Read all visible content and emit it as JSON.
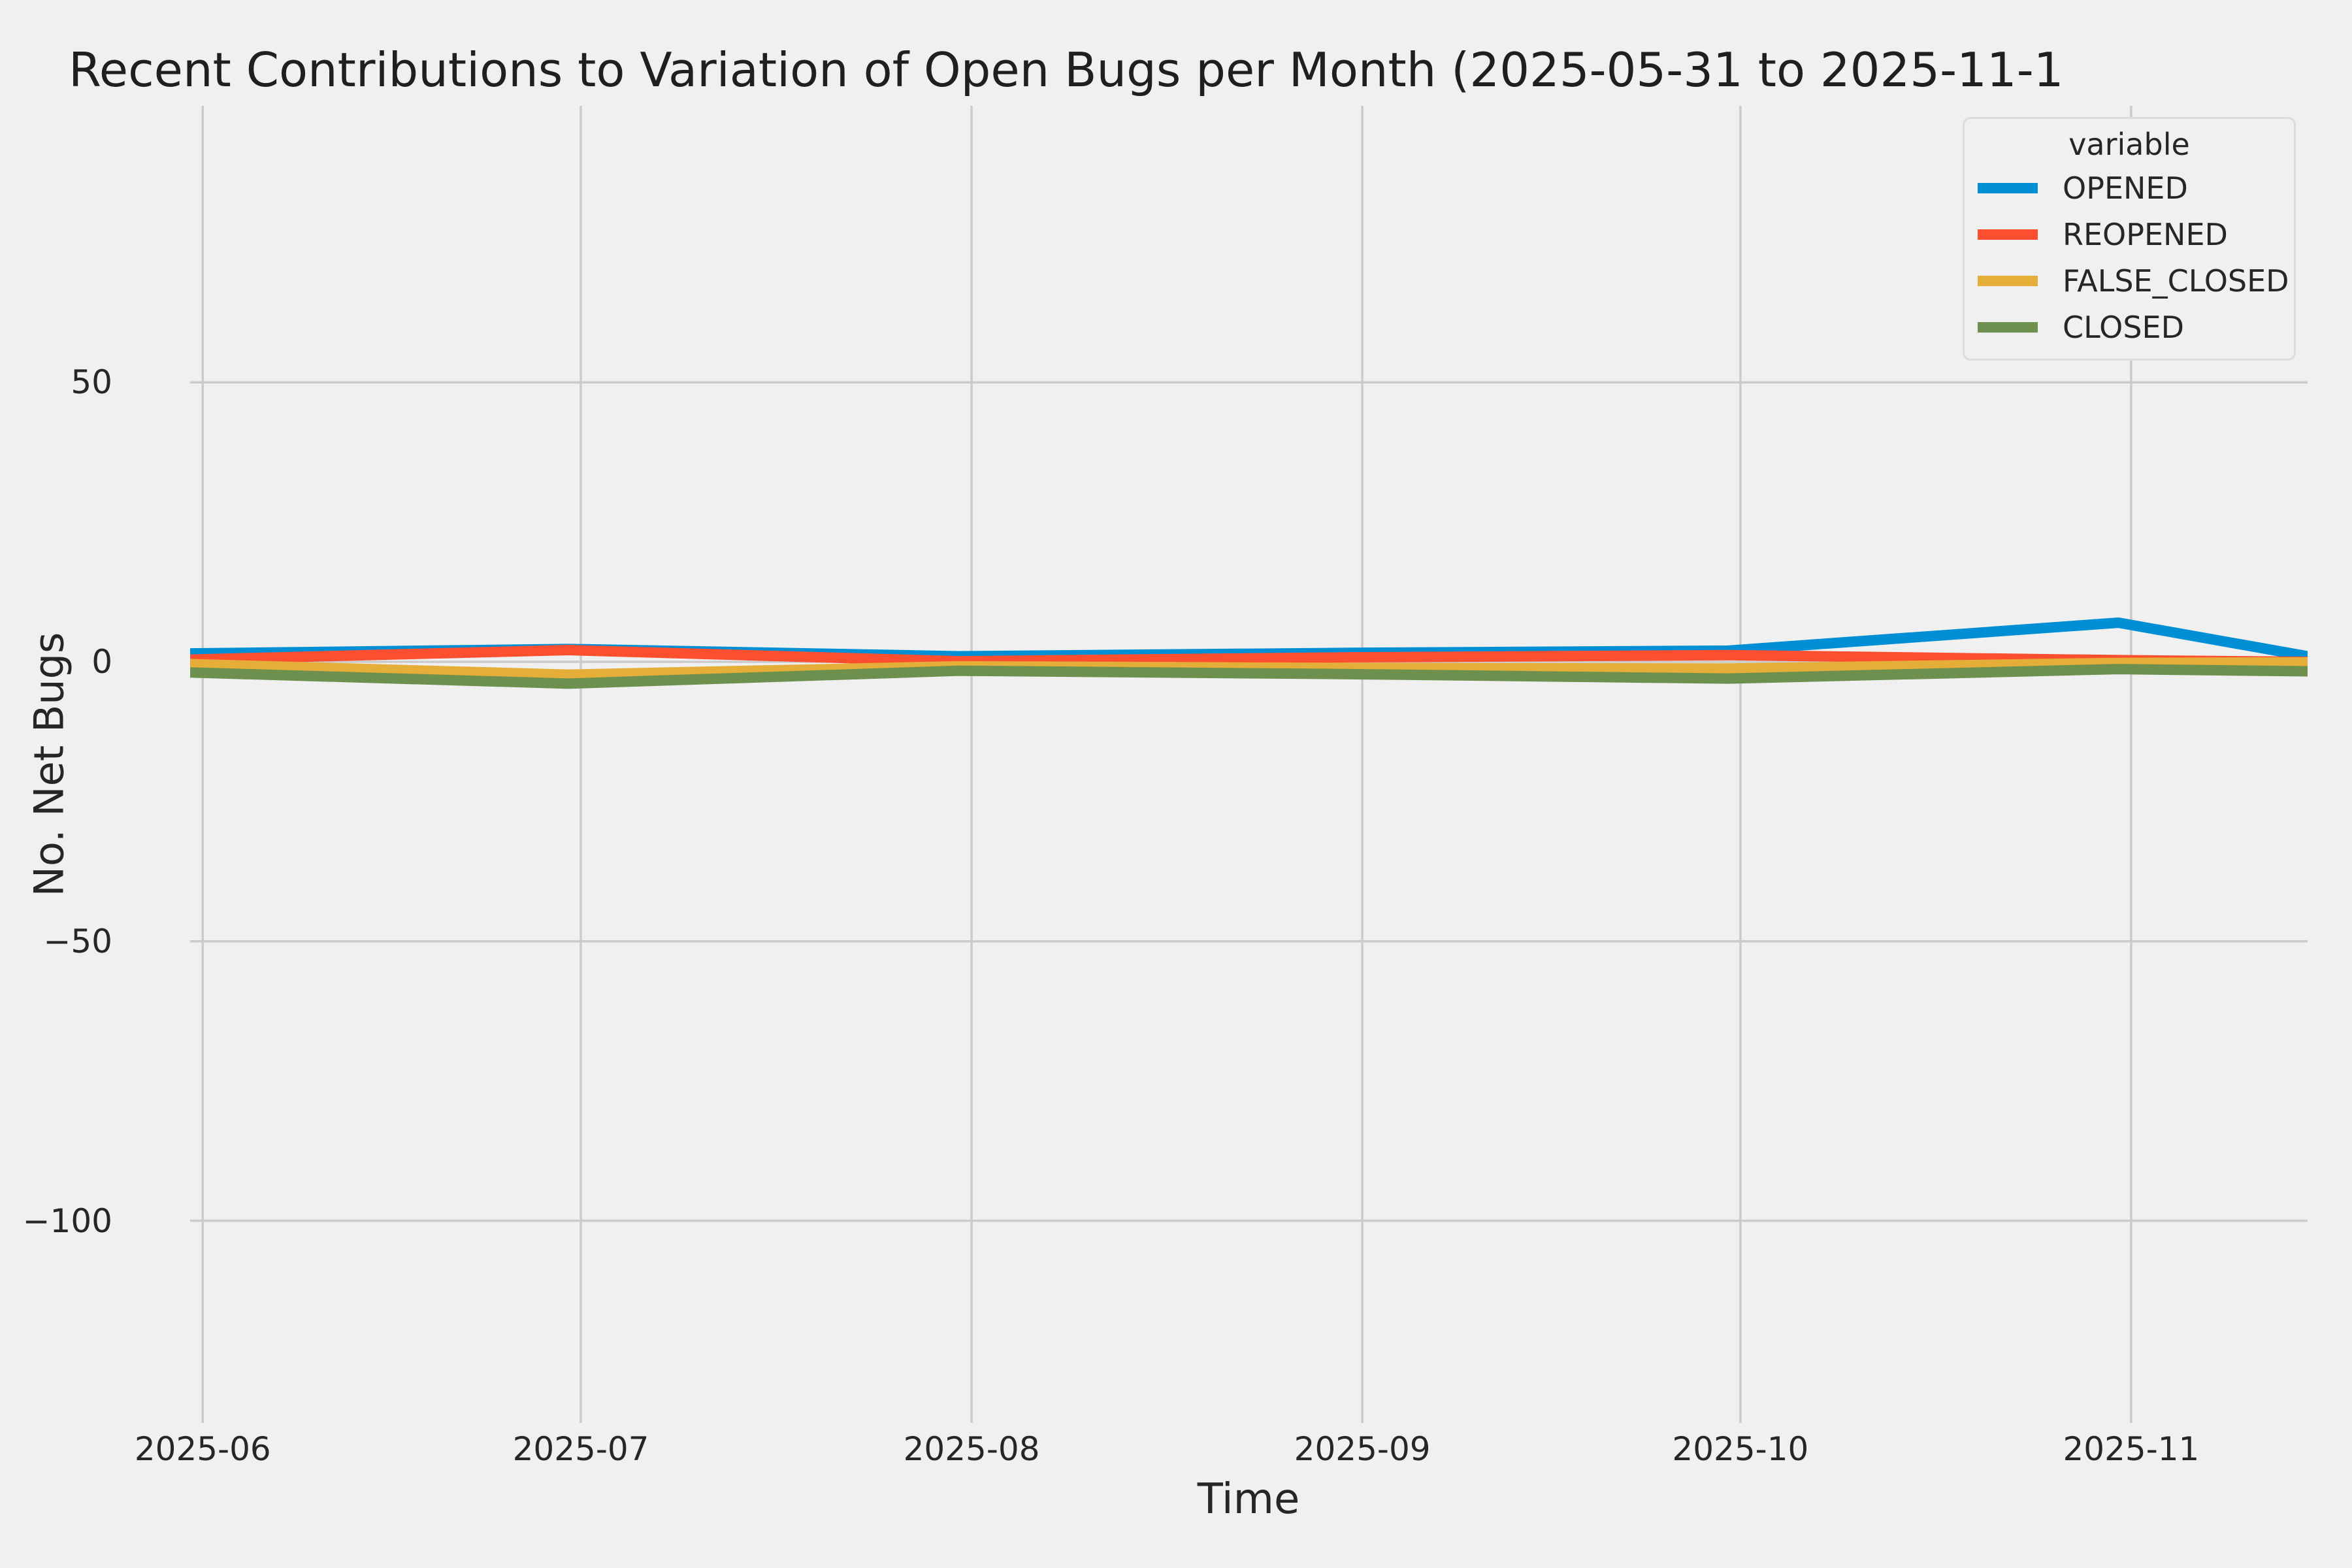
{
  "chart_data": {
    "type": "line",
    "title": "Recent Contributions to Variation of Open Bugs per Month (2025-05-31 to 2025-11-1",
    "xlabel": "Time",
    "ylabel": "No. Net Bugs",
    "legend_title": "variable",
    "legend_position": "upper right",
    "grid": true,
    "background_color": "#f0f0f0",
    "grid_color": "#cbcbcb",
    "text_color": "#262626",
    "x_range": [
      "2025-05-31",
      "2025-11-15"
    ],
    "ylim": [
      -136,
      98
    ],
    "x": [
      "2025-05-31",
      "2025-06-30",
      "2025-07-31",
      "2025-08-31",
      "2025-09-30",
      "2025-10-31",
      "2025-11-15"
    ],
    "series": [
      {
        "name": "OPENED",
        "color": "#008fd5",
        "values": [
          1.5,
          2.3,
          1.0,
          1.6,
          2.0,
          7.0,
          1.0
        ]
      },
      {
        "name": "REOPENED",
        "color": "#fc4f30",
        "values": [
          0.4,
          2.1,
          0.1,
          0.8,
          1.2,
          0.3,
          0.0
        ]
      },
      {
        "name": "FALSE_CLOSED",
        "color": "#e5ae38",
        "values": [
          -0.4,
          -2.3,
          -0.8,
          -1.1,
          -1.2,
          -0.2,
          -0.1
        ]
      },
      {
        "name": "CLOSED",
        "color": "#6d904f",
        "values": [
          -1.9,
          -3.9,
          -1.6,
          -2.2,
          -3.0,
          -1.3,
          -1.7
        ]
      }
    ],
    "x_ticks": [
      {
        "label": "2025-06",
        "date": "2025-06-01"
      },
      {
        "label": "2025-07",
        "date": "2025-07-01"
      },
      {
        "label": "2025-08",
        "date": "2025-08-01"
      },
      {
        "label": "2025-09",
        "date": "2025-09-01"
      },
      {
        "label": "2025-10",
        "date": "2025-10-01"
      },
      {
        "label": "2025-11",
        "date": "2025-11-01"
      }
    ],
    "y_ticks": [
      {
        "label": "50",
        "value": 50
      },
      {
        "label": "0",
        "value": 0
      },
      {
        "label": "−50",
        "value": -50
      },
      {
        "label": "−100",
        "value": -100
      }
    ]
  }
}
